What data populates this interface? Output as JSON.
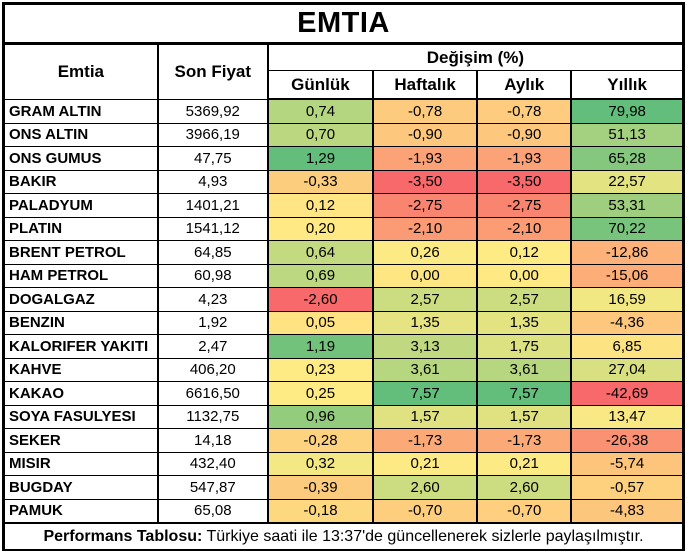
{
  "title": "EMTIA",
  "header": {
    "commodity": "Emtia",
    "last_price": "Son Fiyat",
    "change_group": "Değişim (%)",
    "periods": [
      "Günlük",
      "Haftalık",
      "Aylık",
      "Yıllık"
    ]
  },
  "rows": [
    {
      "name": "GRAM ALTIN",
      "price": "5369,92",
      "changes": [
        {
          "value": "0,74",
          "color": "#b5d680"
        },
        {
          "value": "-0,78",
          "color": "#fdcb7e"
        },
        {
          "value": "-0,78",
          "color": "#fdcc7e"
        },
        {
          "value": "79,98",
          "color": "#63be7b"
        }
      ]
    },
    {
      "name": "ONS ALTIN",
      "price": "3966,19",
      "changes": [
        {
          "value": "0,70",
          "color": "#bbd780"
        },
        {
          "value": "-0,90",
          "color": "#fdc77d"
        },
        {
          "value": "-0,90",
          "color": "#fdc87d"
        },
        {
          "value": "51,13",
          "color": "#a3d17f"
        }
      ]
    },
    {
      "name": "ONS GUMUS",
      "price": "47,75",
      "changes": [
        {
          "value": "1,29",
          "color": "#63be7b"
        },
        {
          "value": "-1,93",
          "color": "#fba276"
        },
        {
          "value": "-1,93",
          "color": "#fba276"
        },
        {
          "value": "65,28",
          "color": "#84c77d"
        }
      ]
    },
    {
      "name": "BAKIR",
      "price": "4,93",
      "changes": [
        {
          "value": "-0,33",
          "color": "#fdcd7e"
        },
        {
          "value": "-3,50",
          "color": "#f8696b"
        },
        {
          "value": "-3,50",
          "color": "#f8696b"
        },
        {
          "value": "22,57",
          "color": "#e3e382"
        }
      ]
    },
    {
      "name": "PALADYUM",
      "price": "1401,21",
      "changes": [
        {
          "value": "0,12",
          "color": "#ffe583"
        },
        {
          "value": "-2,75",
          "color": "#f98470"
        },
        {
          "value": "-2,75",
          "color": "#f98470"
        },
        {
          "value": "53,31",
          "color": "#9fcf7e"
        }
      ]
    },
    {
      "name": "PLATIN",
      "price": "1541,12",
      "changes": [
        {
          "value": "0,20",
          "color": "#ffe984"
        },
        {
          "value": "-2,10",
          "color": "#fb9b75"
        },
        {
          "value": "-2,10",
          "color": "#fb9c75"
        },
        {
          "value": "70,22",
          "color": "#79c47c"
        }
      ]
    },
    {
      "name": "BRENT PETROL",
      "price": "64,85",
      "changes": [
        {
          "value": "0,64",
          "color": "#c4da81"
        },
        {
          "value": "0,26",
          "color": "#fcea84"
        },
        {
          "value": "0,12",
          "color": "#ffeb84"
        },
        {
          "value": "-12,86",
          "color": "#fcb279"
        }
      ]
    },
    {
      "name": "HAM PETROL",
      "price": "60,98",
      "changes": [
        {
          "value": "0,69",
          "color": "#bcd880"
        },
        {
          "value": "0,00",
          "color": "#fee783"
        },
        {
          "value": "0,00",
          "color": "#ffe983"
        },
        {
          "value": "-15,06",
          "color": "#fcad78"
        }
      ]
    },
    {
      "name": "DOGALGAZ",
      "price": "4,23",
      "changes": [
        {
          "value": "-2,60",
          "color": "#f8696b"
        },
        {
          "value": "2,57",
          "color": "#ccdc81"
        },
        {
          "value": "2,57",
          "color": "#cbdc81"
        },
        {
          "value": "16,59",
          "color": "#f1e783"
        }
      ]
    },
    {
      "name": "BENZIN",
      "price": "1,92",
      "changes": [
        {
          "value": "0,05",
          "color": "#ffe282"
        },
        {
          "value": "1,35",
          "color": "#e5e382"
        },
        {
          "value": "1,35",
          "color": "#e4e382"
        },
        {
          "value": "-4,36",
          "color": "#fdc77d"
        }
      ]
    },
    {
      "name": "KALORIFER YAKITI",
      "price": "2,47",
      "changes": [
        {
          "value": "1,19",
          "color": "#72c27c"
        },
        {
          "value": "3,13",
          "color": "#c0d980"
        },
        {
          "value": "1,75",
          "color": "#dce182"
        },
        {
          "value": "6,85",
          "color": "#fee382"
        }
      ]
    },
    {
      "name": "KAHVE",
      "price": "406,20",
      "changes": [
        {
          "value": "0,23",
          "color": "#ffeb84"
        },
        {
          "value": "3,61",
          "color": "#b6d680"
        },
        {
          "value": "3,61",
          "color": "#b6d680"
        },
        {
          "value": "27,04",
          "color": "#d9e082"
        }
      ]
    },
    {
      "name": "KAKAO",
      "price": "6616,50",
      "changes": [
        {
          "value": "0,25",
          "color": "#ffeb84"
        },
        {
          "value": "7,57",
          "color": "#63be7b"
        },
        {
          "value": "7,57",
          "color": "#63be7b"
        },
        {
          "value": "-42,69",
          "color": "#f8696b"
        }
      ]
    },
    {
      "name": "SOYA FASULYESI",
      "price": "1132,75",
      "changes": [
        {
          "value": "0,96",
          "color": "#94cc7e"
        },
        {
          "value": "1,57",
          "color": "#e0e282"
        },
        {
          "value": "1,57",
          "color": "#e0e282"
        },
        {
          "value": "13,47",
          "color": "#f8e984"
        }
      ]
    },
    {
      "name": "SEKER",
      "price": "14,18",
      "changes": [
        {
          "value": "-0,28",
          "color": "#fed37f"
        },
        {
          "value": "-1,73",
          "color": "#fba977"
        },
        {
          "value": "-1,73",
          "color": "#fbaa77"
        },
        {
          "value": "-26,38",
          "color": "#fa9173"
        }
      ]
    },
    {
      "name": "MISIR",
      "price": "432,40",
      "changes": [
        {
          "value": "0,32",
          "color": "#f3e883"
        },
        {
          "value": "0,21",
          "color": "#fdea84"
        },
        {
          "value": "0,21",
          "color": "#fcea84"
        },
        {
          "value": "-5,74",
          "color": "#fdc47c"
        }
      ]
    },
    {
      "name": "BUGDAY",
      "price": "547,87",
      "changes": [
        {
          "value": "-0,39",
          "color": "#fdcb7e"
        },
        {
          "value": "2,60",
          "color": "#cbdc81"
        },
        {
          "value": "2,60",
          "color": "#cbdc81"
        },
        {
          "value": "-0,57",
          "color": "#fed17f"
        }
      ]
    },
    {
      "name": "PAMUK",
      "price": "65,08",
      "changes": [
        {
          "value": "-0,18",
          "color": "#fed87f"
        },
        {
          "value": "-0,70",
          "color": "#fdce7e"
        },
        {
          "value": "-0,70",
          "color": "#fdcf7e"
        },
        {
          "value": "-4,83",
          "color": "#fdc67d"
        }
      ]
    }
  ],
  "footer": {
    "label": "Performans Tablosu:",
    "text": "Türkiye saati ile 13:37'de güncellenerek sizlerle paylaşılmıştır."
  },
  "colors": {
    "scale_min": "#f8696b",
    "scale_mid": "#ffeb84",
    "scale_max": "#63be7b",
    "border": "#000000",
    "background": "#ffffff"
  }
}
